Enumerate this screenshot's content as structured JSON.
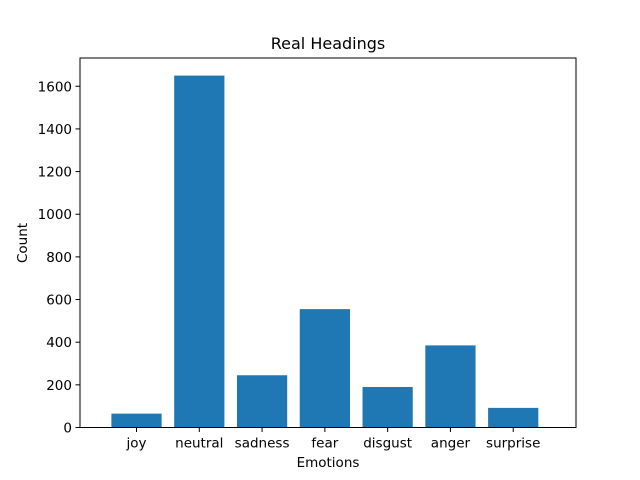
{
  "chart_data": {
    "type": "bar",
    "title": "Real Headings",
    "xlabel": "Emotions",
    "ylabel": "Count",
    "categories": [
      "joy",
      "neutral",
      "sadness",
      "fear",
      "disgust",
      "anger",
      "surprise"
    ],
    "values": [
      65,
      1650,
      245,
      555,
      190,
      385,
      92
    ],
    "ylim": [
      0,
      1732.5
    ],
    "yticks": [
      0,
      200,
      400,
      600,
      800,
      1000,
      1200,
      1400,
      1600
    ],
    "bar_color": "#1f77b4",
    "grid": false,
    "legend": "none"
  }
}
